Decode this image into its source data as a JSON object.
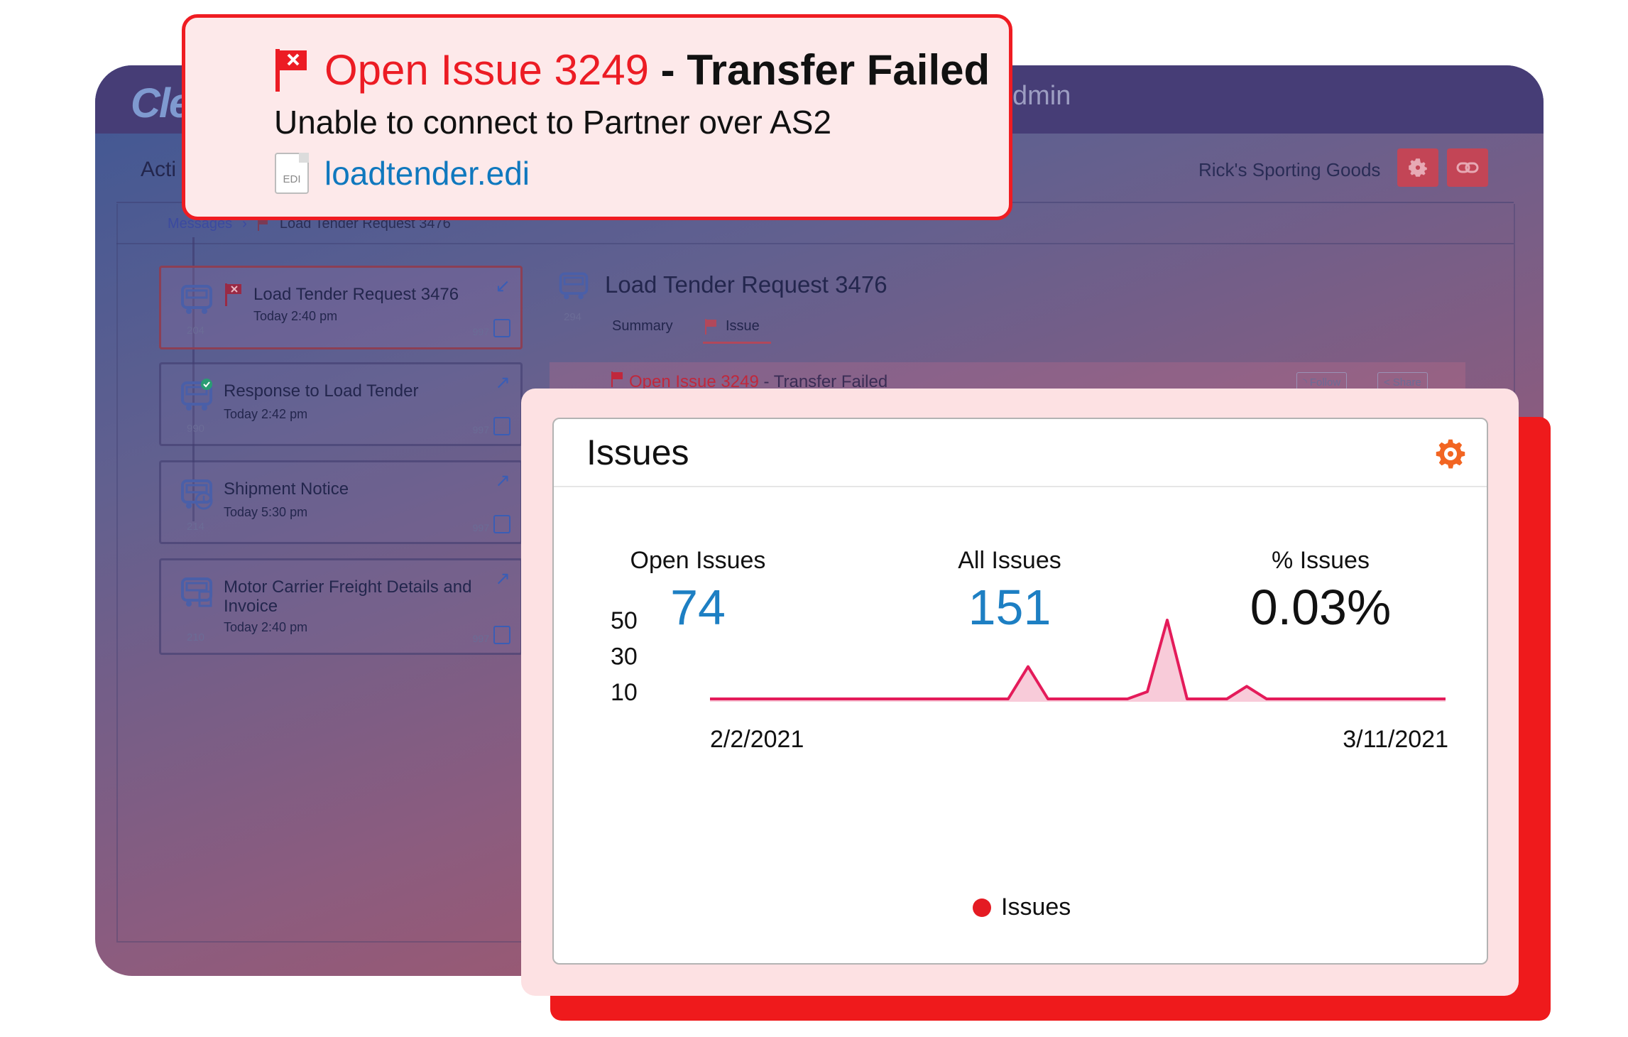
{
  "app": {
    "logo_text": "Cle",
    "user_text": "dmin",
    "nav_title": "Acti",
    "company": "Rick's Sporting Goods",
    "breadcrumb": {
      "root": "Messages",
      "separator": "›",
      "current": "Load Tender Request 3476"
    }
  },
  "messages": [
    {
      "title": "Load Tender Request 3476",
      "time": "Today 2:40 pm",
      "id": "204",
      "count": "997",
      "flagged": true,
      "arrow": "↙"
    },
    {
      "title": "Response to Load Tender",
      "time": "Today 2:42 pm",
      "id": "990",
      "count": "997",
      "flagged": false,
      "arrow": "↗"
    },
    {
      "title": "Shipment Notice",
      "time": "Today 5:30 pm",
      "id": "214",
      "count": "997",
      "flagged": false,
      "arrow": "↗"
    },
    {
      "title": "Motor Carrier Freight Details and Invoice",
      "time": "Today 2:40 pm",
      "id": "210",
      "count": "997",
      "flagged": false,
      "arrow": "↗"
    }
  ],
  "detail": {
    "id": "294",
    "title": "Load Tender Request 3476",
    "tabs": [
      "Summary",
      "Issue"
    ],
    "issue_strip": {
      "issue": "Open Issue 3249",
      "status": " - Transfer Failed",
      "follow": "Follow",
      "share": "Share"
    }
  },
  "alert": {
    "issue": "Open Issue 3249",
    "status": " - Transfer Failed",
    "message": "Unable to connect to Partner over AS2",
    "file_type": "EDI",
    "file_name": "loadtender.edi"
  },
  "widget": {
    "title": "Issues",
    "stats": [
      {
        "label": "Open Issues",
        "value": "74"
      },
      {
        "label": "All Issues",
        "value": "151"
      },
      {
        "label": "% Issues",
        "value": "0.03%"
      }
    ]
  },
  "colors": {
    "accent_red": "#ec1c24",
    "accent_blue": "#1d7fc3",
    "gear_orange": "#f26522"
  },
  "chart_data": {
    "type": "area",
    "x_start": "2/2/2021",
    "x_end": "3/11/2021",
    "y_ticks": [
      50,
      30,
      10
    ],
    "ylim": [
      6,
      52
    ],
    "series": [
      {
        "name": "Issues",
        "color": "#e41b5a",
        "values": [
          6,
          6,
          6,
          6,
          6,
          6,
          6,
          6,
          6,
          6,
          6,
          6,
          6,
          6,
          6,
          6,
          24,
          6,
          6,
          6,
          6,
          6,
          10,
          50,
          6,
          6,
          6,
          13,
          6,
          6,
          6,
          6,
          6,
          6,
          6,
          6,
          6,
          6
        ]
      }
    ]
  }
}
